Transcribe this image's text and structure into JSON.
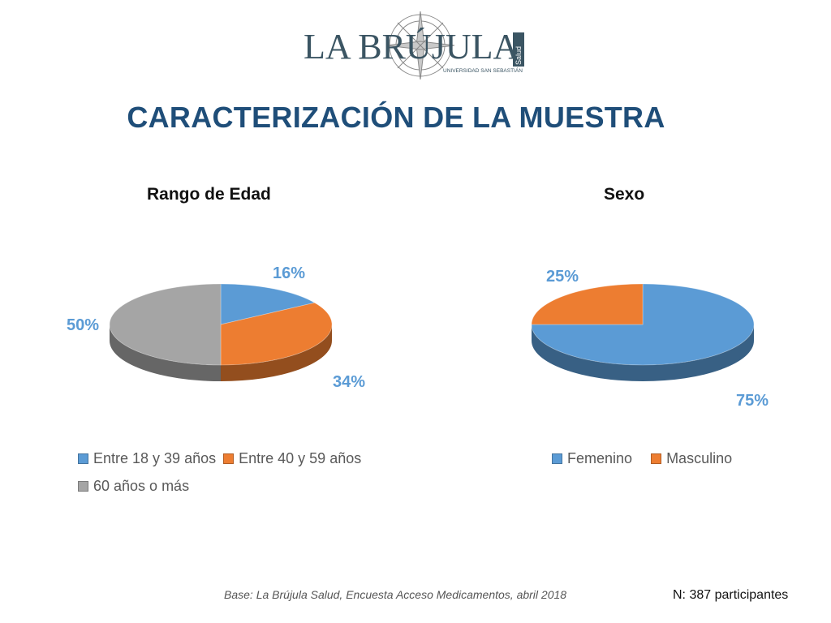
{
  "logo": {
    "text": "LA BRÚJULA",
    "side_text": "Salud",
    "subtitle": "UNIVERSIDAD SAN SEBASTIÁN"
  },
  "page_title": "CARACTERIZACIÓN DE LA MUESTRA",
  "colors": {
    "title": "#1f4e79",
    "label": "#5b9bd5",
    "blue": "#5b9bd5",
    "orange": "#ed7d31",
    "gray": "#a5a5a5"
  },
  "chart_data": [
    {
      "type": "pie",
      "title": "Rango de Edad",
      "labels": [
        "Entre 18 y 39 años",
        "Entre 40 y 59 años",
        "60 años o más"
      ],
      "values": [
        16,
        34,
        50
      ],
      "value_labels": [
        "16%",
        "34%",
        "50%"
      ],
      "colors": [
        "#5b9bd5",
        "#ed7d31",
        "#a5a5a5"
      ],
      "legend": "bottom"
    },
    {
      "type": "pie",
      "title": "Sexo",
      "labels": [
        "Femenino",
        "Masculino"
      ],
      "values": [
        75,
        25
      ],
      "value_labels": [
        "75%",
        "25%"
      ],
      "colors": [
        "#5b9bd5",
        "#ed7d31"
      ],
      "legend": "bottom"
    }
  ],
  "footer": {
    "source": "Base: La Brújula Salud, Encuesta Acceso Medicamentos, abril 2018",
    "n": "N: 387 participantes"
  }
}
